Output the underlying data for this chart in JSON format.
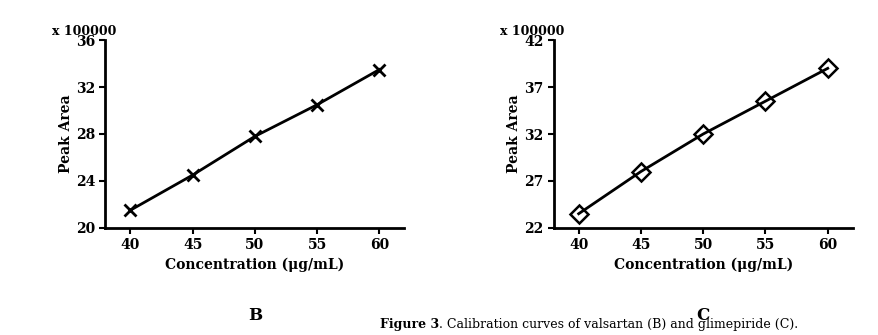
{
  "chart_B": {
    "x": [
      40,
      45,
      50,
      55,
      60
    ],
    "y": [
      21.5,
      24.5,
      27.8,
      30.5,
      33.5
    ],
    "xlim": [
      38,
      62
    ],
    "ylim": [
      20,
      36
    ],
    "xticks": [
      40,
      45,
      50,
      55,
      60
    ],
    "yticks": [
      20,
      24,
      28,
      32,
      36
    ],
    "xlabel": "Concentration (μg/mL)",
    "ylabel": "Peak Area",
    "ylabel2": "x 100000",
    "label_panel": "B",
    "marker": "x",
    "color": "black",
    "linewidth": 2.0,
    "markersize": 9,
    "markeredgewidth": 2.0
  },
  "chart_C": {
    "x": [
      40,
      45,
      50,
      55,
      60
    ],
    "y": [
      23.5,
      28.0,
      32.0,
      35.5,
      39.0
    ],
    "xlim": [
      38,
      62
    ],
    "ylim": [
      22,
      42
    ],
    "xticks": [
      40,
      45,
      50,
      55,
      60
    ],
    "yticks": [
      22,
      27,
      32,
      37,
      42
    ],
    "xlabel": "Concentration (μg/mL)",
    "ylabel": "Peak Area",
    "ylabel2": "x 100000",
    "label_panel": "C",
    "marker": "D",
    "color": "black",
    "linewidth": 2.0,
    "markersize": 9,
    "markeredgewidth": 1.8
  },
  "figure_caption": "Figure 3. Calibration curves of valsartan (B) and glimepiride (C).",
  "figure_caption_bold": "Figure 3",
  "background_color": "#ffffff",
  "tick_fontsize": 10,
  "label_fontsize": 10,
  "panel_label_fontsize": 12
}
